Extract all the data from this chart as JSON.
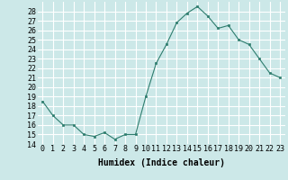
{
  "x": [
    0,
    1,
    2,
    3,
    4,
    5,
    6,
    7,
    8,
    9,
    10,
    11,
    12,
    13,
    14,
    15,
    16,
    17,
    18,
    19,
    20,
    21,
    22,
    23
  ],
  "y": [
    18.5,
    17.0,
    16.0,
    16.0,
    15.0,
    14.8,
    15.2,
    14.5,
    15.0,
    15.0,
    19.0,
    22.5,
    24.5,
    26.8,
    27.8,
    28.5,
    27.5,
    26.2,
    26.5,
    25.0,
    24.5,
    23.0,
    21.5,
    21.0
  ],
  "xlabel": "Humidex (Indice chaleur)",
  "ylim": [
    14,
    29
  ],
  "xlim": [
    -0.5,
    23.5
  ],
  "yticks": [
    14,
    15,
    16,
    17,
    18,
    19,
    20,
    21,
    22,
    23,
    24,
    25,
    26,
    27,
    28
  ],
  "xticks": [
    0,
    1,
    2,
    3,
    4,
    5,
    6,
    7,
    8,
    9,
    10,
    11,
    12,
    13,
    14,
    15,
    16,
    17,
    18,
    19,
    20,
    21,
    22,
    23
  ],
  "line_color": "#2e7d6e",
  "marker_color": "#2e7d6e",
  "bg_color": "#cce8e8",
  "grid_color": "#ffffff",
  "xlabel_fontsize": 7,
  "tick_fontsize": 6
}
